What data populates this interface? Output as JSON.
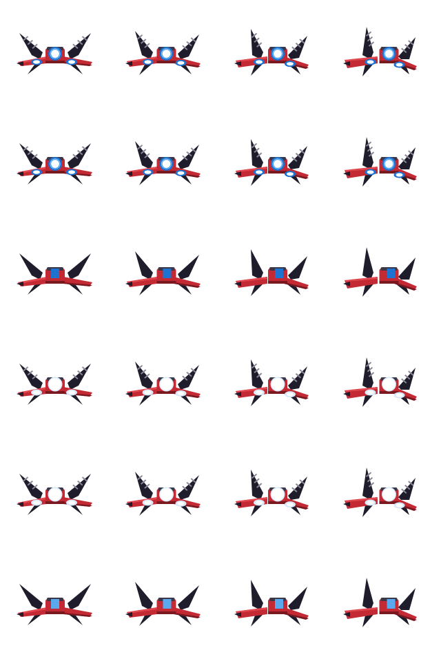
{
  "sprite_sheet": {
    "columns": 4,
    "rows": 6,
    "palette": {
      "hull_red": "#c42a34",
      "hull_red_light": "#e2464f",
      "hull_red_dark": "#7a1820",
      "wing_dark": "#1f1d2b",
      "wing_mid": "#3a3748",
      "wing_light": "#8a8898",
      "glow_blue": "#1e73d2",
      "glow_blue_light": "#5aa8ee",
      "glow_white": "#ffffff",
      "glow_pale": "#d8e8fb"
    },
    "row_variants": [
      {
        "core": "ring-blue",
        "pods": "blue-ring",
        "frames": [
          {
            "tilt": 0
          },
          {
            "tilt": 1
          },
          {
            "tilt": 2
          },
          {
            "tilt": 3
          }
        ]
      },
      {
        "core": "ring-blue",
        "pods": "blue-ring",
        "frames": [
          {
            "tilt": 0
          },
          {
            "tilt": 1
          },
          {
            "tilt": 2
          },
          {
            "tilt": 3
          }
        ]
      },
      {
        "core": "square-blue",
        "pods": "none",
        "frames": [
          {
            "tilt": 0
          },
          {
            "tilt": 1
          },
          {
            "tilt": 2
          },
          {
            "tilt": 3
          }
        ]
      },
      {
        "core": "white-glow",
        "pods": "white-glow",
        "frames": [
          {
            "tilt": 0
          },
          {
            "tilt": 1
          },
          {
            "tilt": 2
          },
          {
            "tilt": 3
          }
        ]
      },
      {
        "core": "white-glow",
        "pods": "white-glow",
        "frames": [
          {
            "tilt": 0
          },
          {
            "tilt": 1
          },
          {
            "tilt": 2
          },
          {
            "tilt": 3
          }
        ]
      },
      {
        "core": "square-light-blue",
        "pods": "none",
        "frames": [
          {
            "tilt": 0
          },
          {
            "tilt": 1
          },
          {
            "tilt": 2
          },
          {
            "tilt": 3
          }
        ]
      }
    ]
  }
}
